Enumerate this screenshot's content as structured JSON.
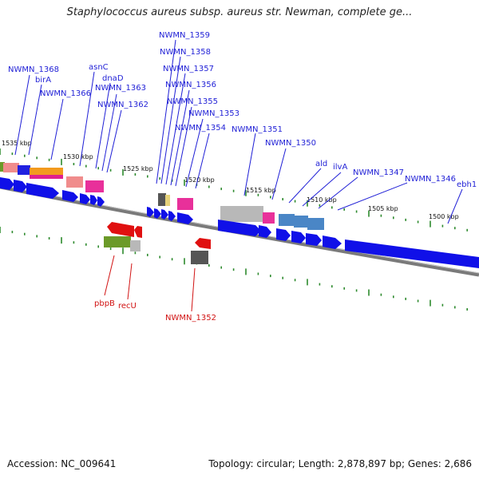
{
  "header": {
    "title": "Staphylococcus aureus subsp. aureus str. Newman, complete ge..."
  },
  "footer": {
    "accession": "Accession: NC_009641",
    "summary": "Topology: circular; Length: 2,878,897 bp; Genes: 2,686"
  },
  "colors": {
    "forward_label": "#1f1fd6",
    "reverse_label": "#d11212",
    "forward_gene": "#1010e8",
    "reverse_gene": "#e01010",
    "backbone": "#8a8a8a",
    "tick": "#2d8a2d"
  },
  "ticks": [
    {
      "label": "1535 kbp"
    },
    {
      "label": "1530 kbp"
    },
    {
      "label": "1525 kbp"
    },
    {
      "label": "1520 kbp"
    },
    {
      "label": "1515 kbp"
    },
    {
      "label": "1510 kbp"
    },
    {
      "label": "1505 kbp"
    },
    {
      "label": "1500 kbp"
    }
  ],
  "forward_labels": [
    "NWMN_1368",
    "birA",
    "NWMN_1366",
    "asnC",
    "dnaD",
    "NWMN_1363",
    "NWMN_1362",
    "NWMN_1359",
    "NWMN_1358",
    "NWMN_1357",
    "NWMN_1356",
    "NWMN_1355",
    "NWMN_1353",
    "NWMN_1354",
    "NWMN_1351",
    "NWMN_1350",
    "ald",
    "ilvA",
    "NWMN_1347",
    "NWMN_1346",
    "ebh1"
  ],
  "reverse_labels": [
    "pbpB",
    "recU",
    "NWMN_1352"
  ]
}
